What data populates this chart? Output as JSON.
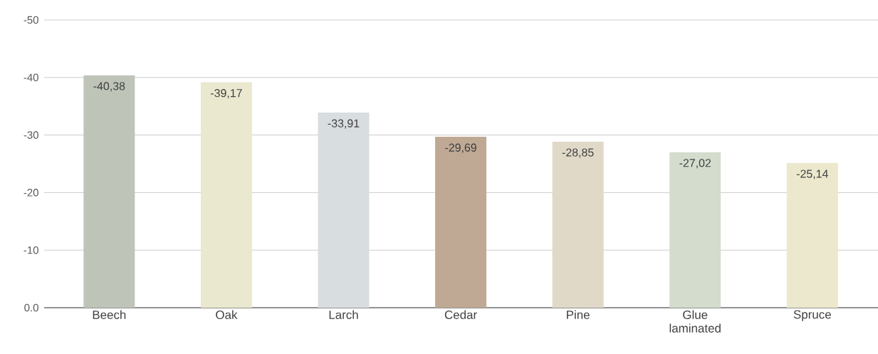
{
  "chart_data": {
    "type": "bar",
    "categories": [
      "Beech",
      "Oak",
      "Larch",
      "Cedar",
      "Pine",
      "Glue laminated",
      "Spruce"
    ],
    "values": [
      -40.38,
      -39.17,
      -33.91,
      -29.69,
      -28.85,
      -27.02,
      -25.14
    ],
    "value_labels": [
      "-40,38",
      "-39,17",
      "-33,91",
      "-29,69",
      "-28,85",
      "-27,02",
      "-25,14"
    ],
    "colors": [
      "#bfc4b9",
      "#eae8cf",
      "#d8dde0",
      "#bfa994",
      "#e0d9c8",
      "#d3dccd",
      "#ebe8cd"
    ],
    "ylim": [
      0,
      -50
    ],
    "yticks": [
      {
        "value": 0,
        "label": "0.0"
      },
      -10,
      -20,
      -30,
      -40,
      -50
    ],
    "grid": "y"
  }
}
